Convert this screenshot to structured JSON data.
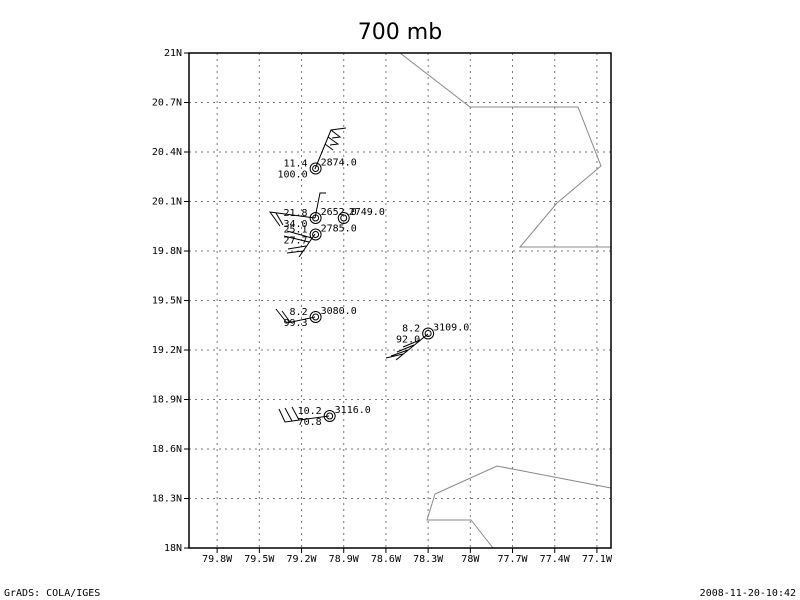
{
  "map": {
    "title": "700 mb",
    "xlim": [
      -80,
      -77
    ],
    "ylim": [
      18,
      21
    ],
    "xticks": [
      {
        "value": -79.8,
        "label": "79.8W"
      },
      {
        "value": -79.5,
        "label": "79.5W"
      },
      {
        "value": -79.2,
        "label": "79.2W"
      },
      {
        "value": -78.9,
        "label": "78.9W"
      },
      {
        "value": -78.6,
        "label": "78.6W"
      },
      {
        "value": -78.3,
        "label": "78.3W"
      },
      {
        "value": -78.0,
        "label": "78W"
      },
      {
        "value": -77.7,
        "label": "77.7W"
      },
      {
        "value": -77.4,
        "label": "77.4W"
      },
      {
        "value": -77.1,
        "label": "77.1W"
      }
    ],
    "yticks": [
      {
        "value": 18.0,
        "label": "18N"
      },
      {
        "value": 18.3,
        "label": "18.3N"
      },
      {
        "value": 18.6,
        "label": "18.6N"
      },
      {
        "value": 18.9,
        "label": "18.9N"
      },
      {
        "value": 19.2,
        "label": "19.2N"
      },
      {
        "value": 19.5,
        "label": "19.5N"
      },
      {
        "value": 19.8,
        "label": "19.8N"
      },
      {
        "value": 20.1,
        "label": "20.1N"
      },
      {
        "value": 20.4,
        "label": "20.4N"
      },
      {
        "value": 20.7,
        "label": "20.7N"
      },
      {
        "value": 21.0,
        "label": "21N"
      }
    ],
    "grid": true,
    "stations": [
      {
        "lon": -79.1,
        "lat": 20.3,
        "ul": "11.4",
        "ll": "100.0",
        "ur": "2874.0"
      },
      {
        "lon": -79.1,
        "lat": 20.0,
        "ul": "21.8",
        "ll": "34.0",
        "ur": "2652.0"
      },
      {
        "lon": -78.9,
        "lat": 20.0,
        "ur": "2749.0"
      },
      {
        "lon": -79.1,
        "lat": 19.9,
        "ul": "25.1",
        "ll": "27.7",
        "ur": "2785.0"
      },
      {
        "lon": -79.1,
        "lat": 19.4,
        "ul": "8.2",
        "ll": "99.3",
        "ur": "3080.0"
      },
      {
        "lon": -78.3,
        "lat": 19.3,
        "ul": "8.2",
        "ll": "92.0",
        "ur": "3109.0"
      },
      {
        "lon": -79.0,
        "lat": 18.8,
        "ul": "10.2",
        "ll": "70.8",
        "ur": "3116.0"
      }
    ],
    "footer_left": "GrADS: COLA/IGES",
    "footer_right": "2008-11-20-10:42"
  }
}
